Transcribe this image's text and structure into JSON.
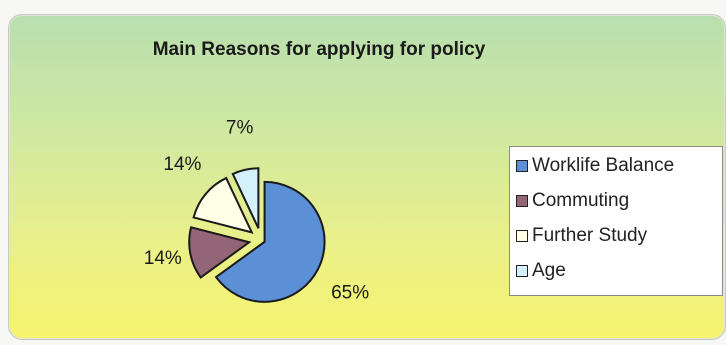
{
  "chart_data": {
    "type": "pie",
    "title": "Main Reasons for applying for policy",
    "exploded": true,
    "slices": [
      {
        "label": "Worklife Balance",
        "value": 65,
        "display": "65%",
        "color": "#5b8fd6"
      },
      {
        "label": "Commuting",
        "value": 14,
        "display": "14%",
        "color": "#946577"
      },
      {
        "label": "Further Study",
        "value": 14,
        "display": "14%",
        "color": "#ffffe8"
      },
      {
        "label": "Age",
        "value": 7,
        "display": "7%",
        "color": "#d4f0fb"
      }
    ],
    "legend_position": "right"
  }
}
